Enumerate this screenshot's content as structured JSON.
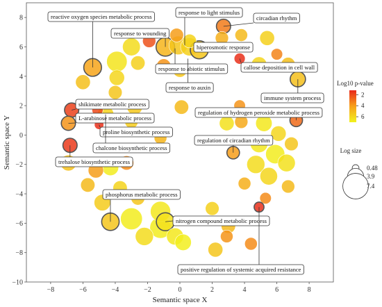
{
  "chart_data": {
    "type": "scatter",
    "xlabel": "Semantic space X",
    "ylabel": "Semantic space Y",
    "xlim": [
      -9.5,
      9.5
    ],
    "ylim": [
      -10,
      9
    ],
    "x_ticks": [
      -8,
      -6,
      -4,
      -2,
      0,
      2,
      4,
      6,
      8
    ],
    "y_ticks": [
      8,
      6,
      4,
      2,
      0,
      -2,
      -4,
      -6,
      -8,
      -10
    ],
    "grid": false,
    "color_legend": {
      "title": "Log10 p-value",
      "ticks": [
        2,
        4,
        6
      ],
      "color_low": "#e8281b",
      "color_mid": "#f7a11a",
      "color_high": "#f2f21e"
    },
    "size_legend": {
      "title": "Log size",
      "values": [
        0.48,
        3.9,
        7.4
      ]
    },
    "points": [
      {
        "x": -5.4,
        "y": 4.6,
        "size": 4.5,
        "logp": 4.2,
        "ring": true
      },
      {
        "x": -3.9,
        "y": 5.0,
        "size": 5.5,
        "logp": 6.5
      },
      {
        "x": -3.0,
        "y": 6.0,
        "size": 4.5,
        "logp": 6.2
      },
      {
        "x": -1.9,
        "y": 6.4,
        "size": 2.8,
        "logp": 2.2
      },
      {
        "x": -2.6,
        "y": 4.9,
        "size": 3.2,
        "logp": 5.8
      },
      {
        "x": -3.9,
        "y": 3.9,
        "size": 3.6,
        "logp": 6.0
      },
      {
        "x": -4.0,
        "y": 2.9,
        "size": 3.0,
        "logp": 5.4
      },
      {
        "x": -6.0,
        "y": 3.6,
        "size": 3.4,
        "logp": 5.2
      },
      {
        "x": -6.7,
        "y": 1.7,
        "size": 3.2,
        "logp": 1.8,
        "ring": true
      },
      {
        "x": -6.9,
        "y": 0.8,
        "size": 3.2,
        "logp": 3.8,
        "ring": true
      },
      {
        "x": -5.1,
        "y": 1.7,
        "size": 2.0,
        "logp": 2.0
      },
      {
        "x": -4.6,
        "y": 1.4,
        "size": 4.0,
        "logp": 5.9
      },
      {
        "x": -2.8,
        "y": 1.9,
        "size": 3.6,
        "logp": 5.5
      },
      {
        "x": -5.0,
        "y": 0.7,
        "size": 1.4,
        "logp": 1.4
      },
      {
        "x": -3.0,
        "y": 0.9,
        "size": 2.8,
        "logp": 5.6
      },
      {
        "x": -1.2,
        "y": -0.2,
        "size": 2.6,
        "logp": 4.8
      },
      {
        "x": -6.8,
        "y": -0.7,
        "size": 3.2,
        "logp": 1.6,
        "ring": true
      },
      {
        "x": -6.9,
        "y": -1.9,
        "size": 3.8,
        "logp": 5.2
      },
      {
        "x": -5.2,
        "y": -2.4,
        "size": 3.6,
        "logp": 4.0
      },
      {
        "x": -4.3,
        "y": -2.2,
        "size": 4.0,
        "logp": 6.8
      },
      {
        "x": -3.3,
        "y": -1.9,
        "size": 3.2,
        "logp": 3.6
      },
      {
        "x": -5.7,
        "y": -3.4,
        "size": 3.2,
        "logp": 5.0
      },
      {
        "x": -3.7,
        "y": -3.6,
        "size": 3.2,
        "logp": 5.9
      },
      {
        "x": -4.8,
        "y": -4.6,
        "size": 4.0,
        "logp": 5.6
      },
      {
        "x": -2.6,
        "y": -4.3,
        "size": 3.0,
        "logp": 5.4
      },
      {
        "x": -4.3,
        "y": -5.9,
        "size": 4.4,
        "logp": 5.4,
        "ring": true
      },
      {
        "x": -3.0,
        "y": -5.7,
        "size": 6.0,
        "logp": 6.8
      },
      {
        "x": -1.2,
        "y": -5.2,
        "size": 5.4,
        "logp": 6.6
      },
      {
        "x": -1.2,
        "y": -6.3,
        "size": 5.8,
        "logp": 6.8
      },
      {
        "x": -0.9,
        "y": -5.9,
        "size": 4.6,
        "logp": 6.4,
        "ring": true
      },
      {
        "x": -2.2,
        "y": -6.9,
        "size": 4.6,
        "logp": 6.2
      },
      {
        "x": -0.3,
        "y": -6.9,
        "size": 4.2,
        "logp": 6.6
      },
      {
        "x": 0.2,
        "y": -7.3,
        "size": 4.0,
        "logp": 6.9
      },
      {
        "x": -0.9,
        "y": 6.0,
        "size": 4.8,
        "logp": 4.8,
        "ring": true
      },
      {
        "x": -0.1,
        "y": 6.1,
        "size": 4.8,
        "logp": 5.4
      },
      {
        "x": 0.6,
        "y": 6.0,
        "size": 4.6,
        "logp": 5.8
      },
      {
        "x": 1.2,
        "y": 5.8,
        "size": 4.6,
        "logp": 5.4,
        "ring": true
      },
      {
        "x": -1.0,
        "y": 4.7,
        "size": 3.2,
        "logp": 3.8
      },
      {
        "x": 0.0,
        "y": 4.4,
        "size": 3.0,
        "logp": 5.4
      },
      {
        "x": 0.6,
        "y": 6.4,
        "size": 3.0,
        "logp": 5.9
      },
      {
        "x": -0.2,
        "y": 6.8,
        "size": 3.0,
        "logp": 4.0
      },
      {
        "x": 0.1,
        "y": 1.9,
        "size": 3.2,
        "logp": 5.0
      },
      {
        "x": 2.7,
        "y": 7.4,
        "size": 3.2,
        "logp": 3.2,
        "ring": true
      },
      {
        "x": 3.8,
        "y": 6.8,
        "size": 2.6,
        "logp": 5.0
      },
      {
        "x": 2.6,
        "y": 6.6,
        "size": 2.8,
        "logp": 4.6
      },
      {
        "x": 3.7,
        "y": 5.2,
        "size": 2.0,
        "logp": 1.4
      },
      {
        "x": 4.9,
        "y": 4.8,
        "size": 3.6,
        "logp": 6.0
      },
      {
        "x": 6.0,
        "y": 5.5,
        "size": 2.2,
        "logp": 3.4
      },
      {
        "x": 5.4,
        "y": 6.6,
        "size": 3.4,
        "logp": 5.8
      },
      {
        "x": 6.7,
        "y": 4.8,
        "size": 3.2,
        "logp": 5.2
      },
      {
        "x": 7.3,
        "y": 3.8,
        "size": 3.6,
        "logp": 5.2,
        "ring": true
      },
      {
        "x": 3.7,
        "y": 2.0,
        "size": 2.2,
        "logp": 3.8
      },
      {
        "x": 2.9,
        "y": 0.8,
        "size": 3.4,
        "logp": 6.4
      },
      {
        "x": 3.8,
        "y": 0.9,
        "size": 2.8,
        "logp": 4.4
      },
      {
        "x": 5.2,
        "y": 0.8,
        "size": 4.0,
        "logp": 6.6
      },
      {
        "x": 6.1,
        "y": 0.1,
        "size": 3.6,
        "logp": 6.0
      },
      {
        "x": 7.2,
        "y": 1.0,
        "size": 2.6,
        "logp": 2.8,
        "ring": true
      },
      {
        "x": 6.9,
        "y": -0.6,
        "size": 3.0,
        "logp": 5.4
      },
      {
        "x": 3.3,
        "y": -1.2,
        "size": 2.6,
        "logp": 4.0,
        "ring": true
      },
      {
        "x": 4.9,
        "y": -0.6,
        "size": 4.4,
        "logp": 6.6
      },
      {
        "x": 5.9,
        "y": -1.3,
        "size": 5.0,
        "logp": 6.8
      },
      {
        "x": 6.6,
        "y": -1.9,
        "size": 4.4,
        "logp": 6.4
      },
      {
        "x": 4.7,
        "y": -2.0,
        "size": 4.6,
        "logp": 6.2
      },
      {
        "x": 5.5,
        "y": -2.8,
        "size": 4.4,
        "logp": 6.0
      },
      {
        "x": 4.0,
        "y": -3.3,
        "size": 2.6,
        "logp": 4.6
      },
      {
        "x": 6.7,
        "y": -3.5,
        "size": 2.8,
        "logp": 5.0
      },
      {
        "x": 5.3,
        "y": -4.3,
        "size": 2.2,
        "logp": 3.6
      },
      {
        "x": 4.9,
        "y": -4.9,
        "size": 1.6,
        "logp": 1.4,
        "ring": true
      },
      {
        "x": 2.0,
        "y": -5.0,
        "size": 3.0,
        "logp": 5.8
      },
      {
        "x": 3.0,
        "y": -6.2,
        "size": 3.2,
        "logp": 5.0
      },
      {
        "x": 2.9,
        "y": -6.9,
        "size": 2.6,
        "logp": 3.8
      },
      {
        "x": 2.2,
        "y": -7.8,
        "size": 3.4,
        "logp": 5.4
      },
      {
        "x": 4.4,
        "y": -7.4,
        "size": 2.6,
        "logp": 3.6
      }
    ],
    "annotations": [
      {
        "text": "reactive oxygen species metabolic process",
        "ax": -5.4,
        "ay": 4.6
      },
      {
        "text": "response to light stimulus",
        "ax": 0.3,
        "ay": 6.1
      },
      {
        "text": "circadian rhythm",
        "ax": 2.7,
        "ay": 7.4
      },
      {
        "text": "response to wounding",
        "ax": -0.9,
        "ay": 6.0
      },
      {
        "text": "hiperosmotic response",
        "ax": 1.2,
        "ay": 5.8
      },
      {
        "text": "callose deposition in cell wall",
        "ax": 3.7,
        "ay": 5.2
      },
      {
        "text": "response to abiotic stimulus",
        "ax": -0.3,
        "ay": 5.9
      },
      {
        "text": "response to auxin",
        "ax": 0.5,
        "ay": 5.2
      },
      {
        "text": "immune system process",
        "ax": 7.3,
        "ay": 3.8
      },
      {
        "text": "shikimate metabolic process",
        "ax": -6.7,
        "ay": 1.7
      },
      {
        "text": "regulation of hydrogen peroxide metabolic process",
        "ax": 7.2,
        "ay": 1.0
      },
      {
        "text": "L-arabinose metabolic process",
        "ax": -6.9,
        "ay": 0.8
      },
      {
        "text": "proline biosynthetic process",
        "ax": -5.0,
        "ay": 0.7
      },
      {
        "text": "chalcone biosynthetic process",
        "ax": -4.6,
        "ay": 1.4
      },
      {
        "text": "regulation of circadian rhythm",
        "ax": 3.3,
        "ay": -1.2
      },
      {
        "text": "trehalose biosynthetic process",
        "ax": -6.8,
        "ay": -0.7
      },
      {
        "text": "phosphorus metabolic process",
        "ax": -4.3,
        "ay": -5.9
      },
      {
        "text": "nitrogen compound metabolic process",
        "ax": -0.9,
        "ay": -5.9
      },
      {
        "text": "positive regulation of systemic acquired resistance",
        "ax": 4.9,
        "ay": -4.9
      }
    ]
  }
}
